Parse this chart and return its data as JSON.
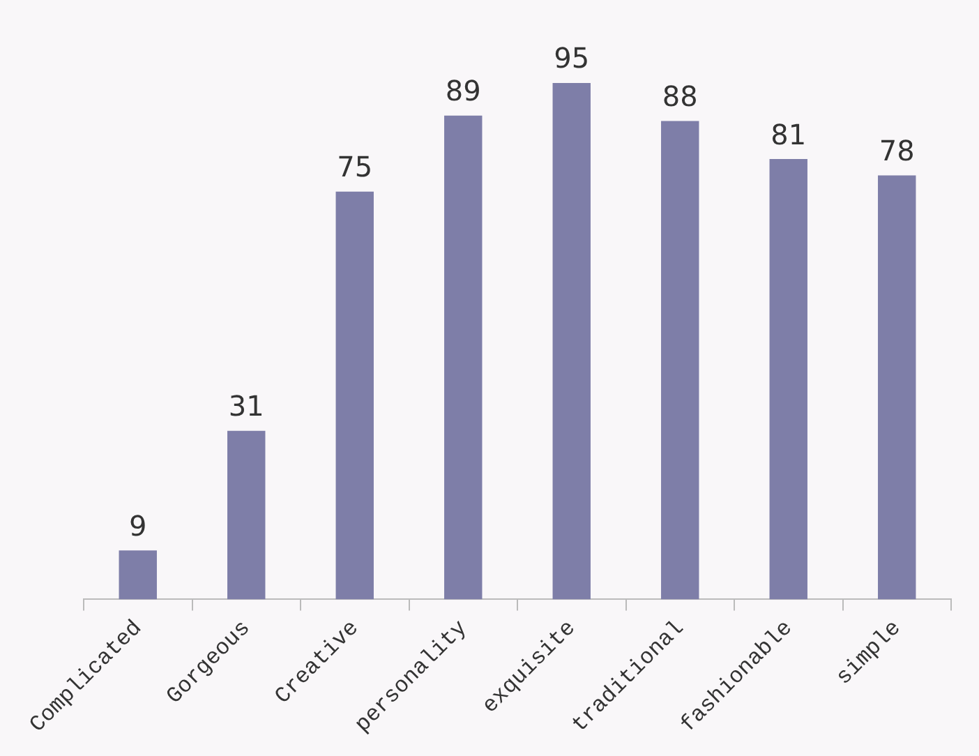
{
  "chart_data": {
    "type": "bar",
    "categories": [
      "Complicated",
      "Gorgeous",
      "Creative",
      "personality",
      "exquisite",
      "traditional",
      "fashionable",
      "simple"
    ],
    "values": [
      9,
      31,
      75,
      89,
      95,
      88,
      81,
      78
    ],
    "color": "#7e7ea8",
    "data_labels": true,
    "grid": false,
    "legend": false,
    "tick_labels": "x"
  }
}
